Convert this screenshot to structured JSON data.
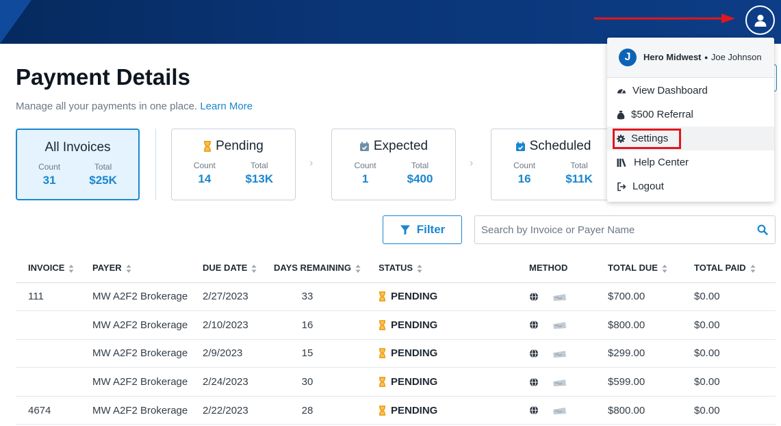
{
  "page": {
    "title": "Payment Details",
    "subtitle": "Manage all your payments in one place.",
    "learn_more": "Learn More"
  },
  "cards": [
    {
      "label": "All Invoices",
      "count_label": "Count",
      "count": "31",
      "total_label": "Total",
      "total": "$25K"
    },
    {
      "label": "Pending",
      "count_label": "Count",
      "count": "14",
      "total_label": "Total",
      "total": "$13K"
    },
    {
      "label": "Expected",
      "count_label": "Count",
      "count": "1",
      "total_label": "Total",
      "total": "$400"
    },
    {
      "label": "Scheduled",
      "count_label": "Count",
      "count": "16",
      "total_label": "Total",
      "total": "$11K"
    }
  ],
  "filter": {
    "label": "Filter"
  },
  "search": {
    "placeholder": "Search by Invoice or Payer Name"
  },
  "table": {
    "headers": [
      "INVOICE",
      "PAYER",
      "DUE DATE",
      "DAYS REMAINING",
      "STATUS",
      "METHOD",
      "TOTAL DUE",
      "TOTAL PAID"
    ],
    "rows": [
      {
        "invoice": "111",
        "payer": "MW A2F2 Brokerage",
        "due": "2/27/2023",
        "days": "33",
        "status": "PENDING",
        "total_due": "$700.00",
        "total_paid": "$0.00"
      },
      {
        "invoice": "",
        "payer": "MW A2F2 Brokerage",
        "due": "2/10/2023",
        "days": "16",
        "status": "PENDING",
        "total_due": "$800.00",
        "total_paid": "$0.00"
      },
      {
        "invoice": "",
        "payer": "MW A2F2 Brokerage",
        "due": "2/9/2023",
        "days": "15",
        "status": "PENDING",
        "total_due": "$299.00",
        "total_paid": "$0.00"
      },
      {
        "invoice": "",
        "payer": "MW A2F2 Brokerage",
        "due": "2/24/2023",
        "days": "30",
        "status": "PENDING",
        "total_due": "$599.00",
        "total_paid": "$0.00"
      },
      {
        "invoice": "4674",
        "payer": "MW A2F2 Brokerage",
        "due": "2/22/2023",
        "days": "28",
        "status": "PENDING",
        "total_due": "$800.00",
        "total_paid": "$0.00"
      }
    ]
  },
  "user_menu": {
    "avatar_initial": "J",
    "org": "Hero Midwest",
    "separator": "●",
    "user": "Joe Johnson",
    "items": [
      {
        "label": "View Dashboard",
        "icon": "dashboard-icon"
      },
      {
        "label": "$500 Referral",
        "icon": "money-bag-icon"
      },
      {
        "label": "Settings",
        "icon": "gear-icon"
      },
      {
        "label": "Help Center",
        "icon": "books-icon"
      },
      {
        "label": "Logout",
        "icon": "logout-icon"
      }
    ]
  },
  "colors": {
    "accent": "#1a86d0",
    "header_bg": "#0a3577",
    "pending_icon": "#f0a21f",
    "annotation_red": "#e3161d"
  }
}
